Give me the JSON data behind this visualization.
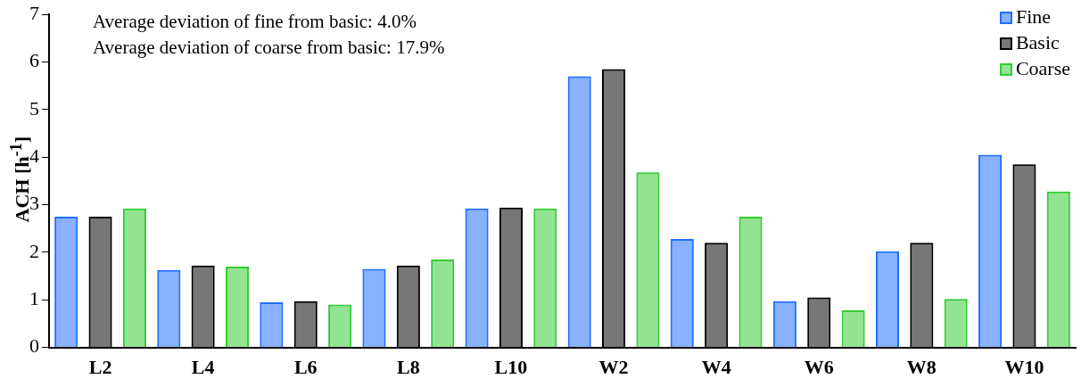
{
  "chart_data": {
    "type": "bar",
    "ylabel": "ACH [h$^{-1}$]",
    "categories": [
      "L2",
      "L4",
      "L6",
      "L8",
      "L10",
      "W2",
      "W4",
      "W6",
      "W8",
      "W10"
    ],
    "series": [
      {
        "name": "Fine",
        "color": "#1f6fff",
        "values": [
          2.75,
          1.63,
          0.95,
          1.65,
          2.92,
          5.7,
          2.28,
          0.97,
          2.02,
          4.05
        ]
      },
      {
        "name": "Basic",
        "color": "#000000",
        "values": [
          2.75,
          1.72,
          0.97,
          1.72,
          2.94,
          5.85,
          2.2,
          1.05,
          2.2,
          3.85
        ]
      },
      {
        "name": "Coarse",
        "color": "#33cc33",
        "values": [
          2.92,
          1.7,
          0.9,
          1.85,
          2.92,
          3.68,
          2.75,
          0.78,
          1.02,
          3.28
        ]
      }
    ],
    "ylim": [
      0,
      7
    ],
    "yticks": [
      0,
      1,
      2,
      3,
      4,
      5,
      6,
      7
    ],
    "grid": false,
    "legend": "top right",
    "annotations": [
      "Average deviation of fine from basic: 4.0%",
      "Average deviation of coarse from basic: 17.9%"
    ]
  }
}
